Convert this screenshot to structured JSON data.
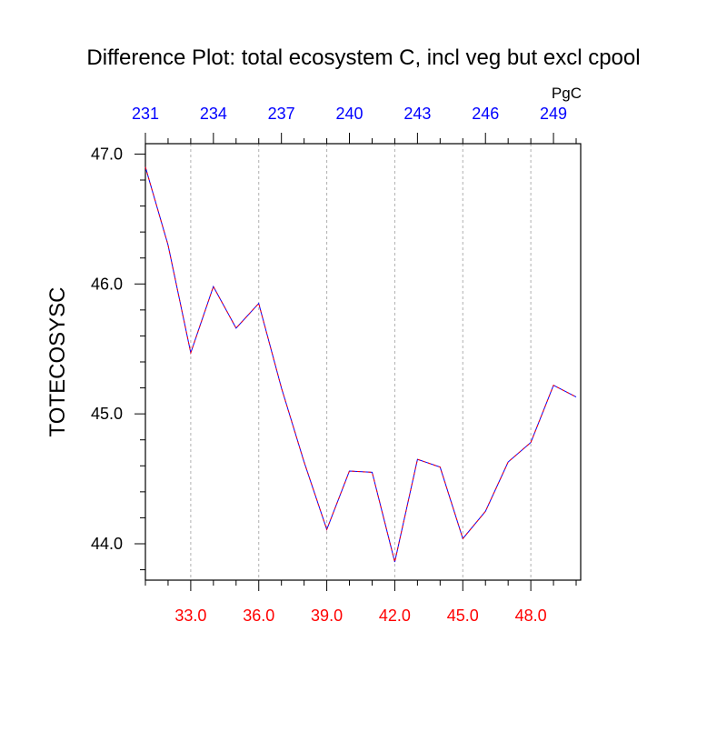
{
  "chart_data": {
    "type": "line",
    "title": "Difference Plot: total ecosystem C, incl veg but excl cpool",
    "ylabel": "TOTECOSYSC",
    "xlabel": "",
    "top_axis_unit": "PgC",
    "x": [
      31,
      32,
      33,
      34,
      35,
      36,
      37,
      38,
      39,
      40,
      41,
      42,
      43,
      44,
      45,
      46,
      47,
      48,
      49,
      50
    ],
    "series": [
      {
        "values": [
          46.9,
          46.3,
          45.47,
          45.98,
          45.66,
          45.85,
          45.2,
          44.63,
          44.11,
          44.56,
          44.55,
          43.86,
          44.65,
          44.59,
          44.04,
          44.25,
          44.63,
          44.78,
          45.22,
          45.13
        ]
      }
    ],
    "xlim": [
      31,
      50.2
    ],
    "ylim": [
      43.72,
      47.08
    ],
    "x_ticks": [
      33,
      36,
      39,
      42,
      45,
      48
    ],
    "x_tick_labels": [
      "33.0",
      "36.0",
      "39.0",
      "42.0",
      "45.0",
      "48.0"
    ],
    "y_ticks": [
      44,
      45,
      46,
      47
    ],
    "y_tick_labels": [
      "44.0",
      "45.0",
      "46.0",
      "47.0"
    ],
    "top_ticks": [
      31,
      34,
      37,
      40,
      43,
      46,
      49
    ],
    "top_tick_labels": [
      "231",
      "234",
      "237",
      "240",
      "243",
      "246",
      "249"
    ],
    "grid": "vertical dashed at bottom x ticks",
    "colors": {
      "line_primary": "#0000ff",
      "line_dash": "#ff0000",
      "bottom_ticks": "#ff0000",
      "top_ticks": "#0000ff",
      "grid": "#b0b0b0",
      "axis": "#000000"
    }
  }
}
